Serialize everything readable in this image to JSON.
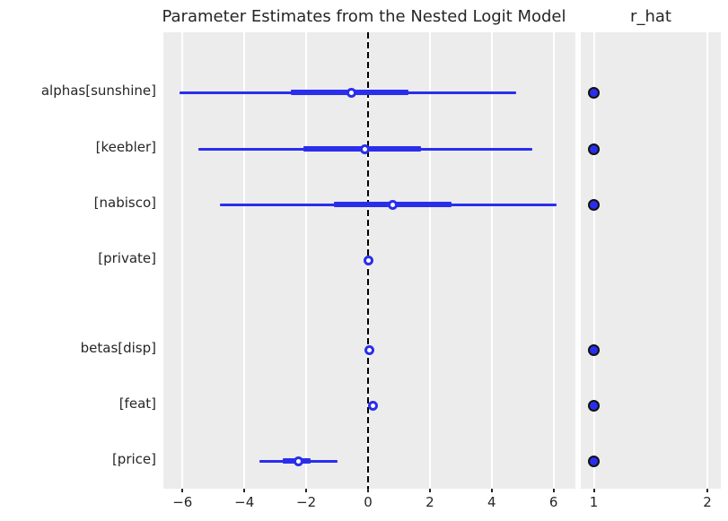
{
  "chart_data": {
    "type": "forest",
    "title": "Parameter Estimates from the Nested Logit Model",
    "rhat_panel_title": "r_hat",
    "parameters": [
      {
        "label": "alphas[sunshine]",
        "hdi_outer": [
          -6.1,
          4.8
        ],
        "hdi_inner": [
          -2.5,
          1.3
        ],
        "median": -0.55,
        "r_hat": 1.0
      },
      {
        "label": "[keebler]",
        "hdi_outer": [
          -5.5,
          5.3
        ],
        "hdi_inner": [
          -2.1,
          1.7
        ],
        "median": -0.1,
        "r_hat": 1.0
      },
      {
        "label": "[nabisco]",
        "hdi_outer": [
          -4.8,
          6.1
        ],
        "hdi_inner": [
          -1.1,
          2.7
        ],
        "median": 0.8,
        "r_hat": 1.0
      },
      {
        "label": "[private]",
        "hdi_outer": [
          -0.04,
          0.04
        ],
        "hdi_inner": [
          -0.02,
          0.02
        ],
        "median": 0.0,
        "r_hat": null
      },
      {
        "label": "betas[disp]",
        "hdi_outer": [
          -0.01,
          0.07
        ],
        "hdi_inner": [
          0.0,
          0.05
        ],
        "median": 0.03,
        "r_hat": 1.0
      },
      {
        "label": "[feat]",
        "hdi_outer": [
          0.1,
          0.21
        ],
        "hdi_inner": [
          0.12,
          0.19
        ],
        "median": 0.15,
        "r_hat": 1.0
      },
      {
        "label": "[price]",
        "hdi_outer": [
          -3.5,
          -1.0
        ],
        "hdi_inner": [
          -2.75,
          -1.85
        ],
        "median": -2.25,
        "r_hat": 1.0
      }
    ],
    "x_axis": {
      "tick_values": [
        -6,
        -4,
        -2,
        0,
        2,
        4,
        6
      ],
      "tick_labels": [
        "−6",
        "−4",
        "−2",
        "0",
        "2",
        "4",
        "6"
      ],
      "range": [
        -6.6,
        6.7
      ]
    },
    "rhat_axis": {
      "tick_values": [
        1,
        2
      ],
      "tick_labels": [
        "1",
        "2"
      ],
      "range": [
        0.89,
        2.12
      ]
    },
    "zero_reference_line": 0,
    "grid": "vertical-white",
    "legend": null,
    "colors": {
      "interval": "#2a2eec",
      "median_marker_face": "#ffffff",
      "rhat_dot_fill": "#2a2eec",
      "rhat_dot_edge": "#111111",
      "panel_bg": "#ececec",
      "gridline": "#ffffff",
      "zero_line": "#000000",
      "text": "#262626"
    }
  }
}
